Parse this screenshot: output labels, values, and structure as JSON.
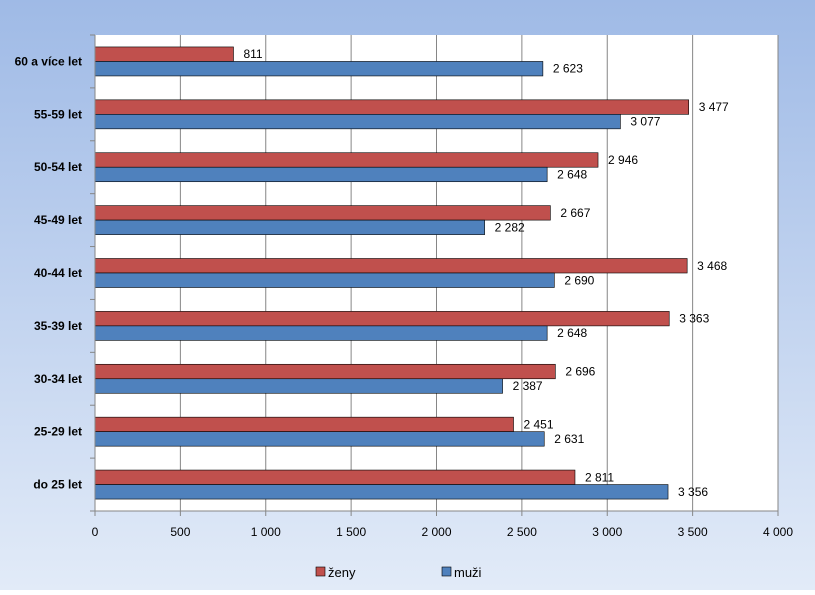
{
  "chart_data": {
    "type": "bar",
    "orientation": "horizontal",
    "title": "",
    "xlabel": "",
    "ylabel": "",
    "categories": [
      "60 a více let",
      "55-59 let",
      "50-54 let",
      "45-49 let",
      "40-44 let",
      "35-39 let",
      "30-34 let",
      "25-29 let",
      "do 25 let"
    ],
    "series": [
      {
        "name": "ženy",
        "color": "#c0504d",
        "values": [
          811,
          3477,
          2946,
          2667,
          3468,
          3363,
          2696,
          2451,
          2811
        ],
        "labels": [
          "811",
          "3 477",
          "2 946",
          "2 667",
          "3 468",
          "3 363",
          "2 696",
          "2 451",
          "2 811"
        ]
      },
      {
        "name": "muži",
        "color": "#4f81bd",
        "values": [
          2623,
          3077,
          2648,
          2282,
          2690,
          2648,
          2387,
          2631,
          3356
        ],
        "labels": [
          "2 623",
          "3 077",
          "2 648",
          "2 282",
          "2 690",
          "2 648",
          "2 387",
          "2 631",
          "3 356"
        ]
      }
    ],
    "xlim": [
      0,
      4000
    ],
    "xticks": [
      0,
      500,
      1000,
      1500,
      2000,
      2500,
      3000,
      3500,
      4000
    ],
    "xtick_labels": [
      "0",
      "500",
      "1 000",
      "1 500",
      "2 000",
      "2 500",
      "3 000",
      "3 500",
      "4 000"
    ],
    "grid": true,
    "legend_position": "bottom"
  },
  "colors": {
    "bg_top": "#9fbae6",
    "bg_bottom": "#e2ebf8",
    "plot_bg": "#ffffff",
    "gridline": "#868686",
    "text": "#000000"
  }
}
